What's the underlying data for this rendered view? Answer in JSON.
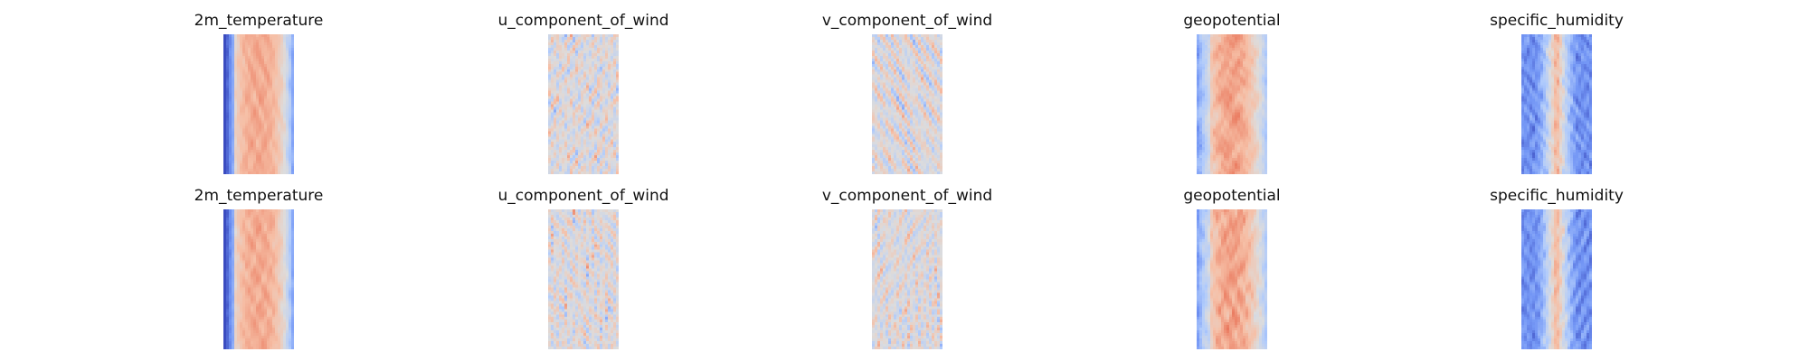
{
  "chart_data": {
    "type": "heatmap",
    "colormap": "coolwarm",
    "colormap_stops": [
      "#3b4cc0",
      "#7396f5",
      "#b0cbfc",
      "#dddcdc",
      "#f6bfa6",
      "#ea7b60",
      "#b40426"
    ],
    "axes": "off",
    "rows": [
      {
        "panels": [
          {
            "title": "2m_temperature",
            "pattern": "temperature",
            "seed": 11
          },
          {
            "title": "u_component_of_wind",
            "pattern": "wind",
            "seed": 23
          },
          {
            "title": "v_component_of_wind",
            "pattern": "wind",
            "seed": 37
          },
          {
            "title": "geopotential",
            "pattern": "geopotential",
            "seed": 41
          },
          {
            "title": "specific_humidity",
            "pattern": "humidity",
            "seed": 53
          }
        ]
      },
      {
        "panels": [
          {
            "title": "2m_temperature",
            "pattern": "temperature",
            "seed": 67
          },
          {
            "title": "u_component_of_wind",
            "pattern": "wind",
            "seed": 79
          },
          {
            "title": "v_component_of_wind",
            "pattern": "wind",
            "seed": 83
          },
          {
            "title": "geopotential",
            "pattern": "geopotential",
            "seed": 97
          },
          {
            "title": "specific_humidity",
            "pattern": "humidity",
            "seed": 101
          }
        ]
      }
    ]
  }
}
